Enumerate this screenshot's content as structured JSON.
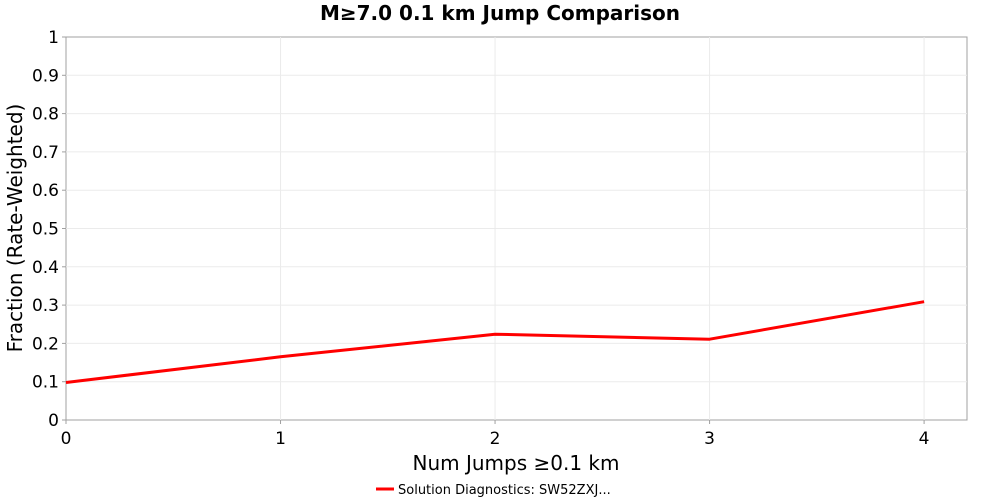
{
  "chart_data": {
    "type": "line",
    "title": "M≥7.0 0.1 km Jump Comparison",
    "xlabel": "Num Jumps ≥0.1 km",
    "ylabel": "Fraction (Rate-Weighted)",
    "xlim": [
      0,
      4.2
    ],
    "ylim": [
      0,
      1
    ],
    "xticks": [
      "0",
      "1",
      "2",
      "3",
      "4"
    ],
    "yticks": [
      "0",
      "0.1",
      "0.2",
      "0.3",
      "0.4",
      "0.5",
      "0.6",
      "0.7",
      "0.8",
      "0.9",
      "1"
    ],
    "grid": true,
    "legend_position": "bottom-center",
    "series": [
      {
        "name": "Solution Diagnostics: SW52ZXJ...",
        "color": "#ff0000",
        "x": [
          0,
          1,
          2,
          3,
          4
        ],
        "y": [
          0.098,
          0.165,
          0.224,
          0.211,
          0.309
        ]
      }
    ]
  }
}
